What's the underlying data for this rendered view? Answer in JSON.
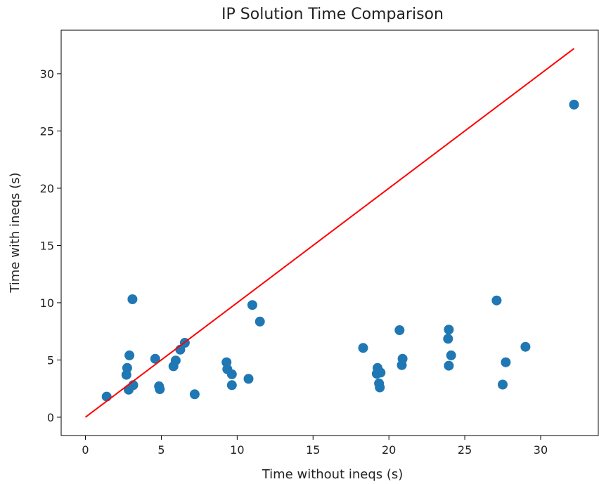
{
  "chart_data": {
    "type": "scatter",
    "title": "IP Solution Time Comparison",
    "xlabel": "Time without ineqs (s)",
    "ylabel": "Time with ineqs (s)",
    "xlim": [
      -1.6,
      33.8
    ],
    "ylim": [
      -1.6,
      33.8
    ],
    "x_ticks": [
      0,
      5,
      10,
      15,
      20,
      25,
      30
    ],
    "y_ticks": [
      0,
      5,
      10,
      15,
      20,
      25,
      30
    ],
    "grid": false,
    "series": [
      {
        "type": "scatter",
        "color": "#1f77b4",
        "points": [
          [
            1.4,
            1.8
          ],
          [
            2.7,
            3.7
          ],
          [
            2.75,
            4.3
          ],
          [
            2.85,
            2.4
          ],
          [
            2.9,
            5.4
          ],
          [
            3.1,
            10.3
          ],
          [
            3.15,
            2.8
          ],
          [
            4.6,
            5.1
          ],
          [
            4.85,
            2.7
          ],
          [
            4.9,
            2.45
          ],
          [
            5.8,
            4.45
          ],
          [
            5.95,
            4.95
          ],
          [
            6.25,
            5.9
          ],
          [
            6.55,
            6.5
          ],
          [
            7.2,
            2.0
          ],
          [
            9.3,
            4.8
          ],
          [
            9.35,
            4.2
          ],
          [
            9.65,
            3.75
          ],
          [
            9.65,
            2.8
          ],
          [
            10.75,
            3.35
          ],
          [
            11.0,
            9.8
          ],
          [
            11.5,
            8.35
          ],
          [
            18.3,
            6.05
          ],
          [
            19.2,
            3.8
          ],
          [
            19.25,
            4.3
          ],
          [
            19.35,
            2.95
          ],
          [
            19.4,
            2.6
          ],
          [
            19.45,
            3.9
          ],
          [
            20.7,
            7.6
          ],
          [
            20.85,
            4.55
          ],
          [
            20.9,
            5.1
          ],
          [
            23.9,
            6.85
          ],
          [
            23.95,
            7.65
          ],
          [
            23.95,
            4.5
          ],
          [
            24.1,
            5.4
          ],
          [
            27.1,
            10.2
          ],
          [
            27.5,
            2.85
          ],
          [
            27.7,
            4.8
          ],
          [
            29.0,
            6.15
          ],
          [
            32.2,
            27.3
          ]
        ]
      },
      {
        "type": "line",
        "color": "#ff0000",
        "points": [
          [
            0,
            0
          ],
          [
            32.2,
            32.2
          ]
        ]
      }
    ]
  }
}
